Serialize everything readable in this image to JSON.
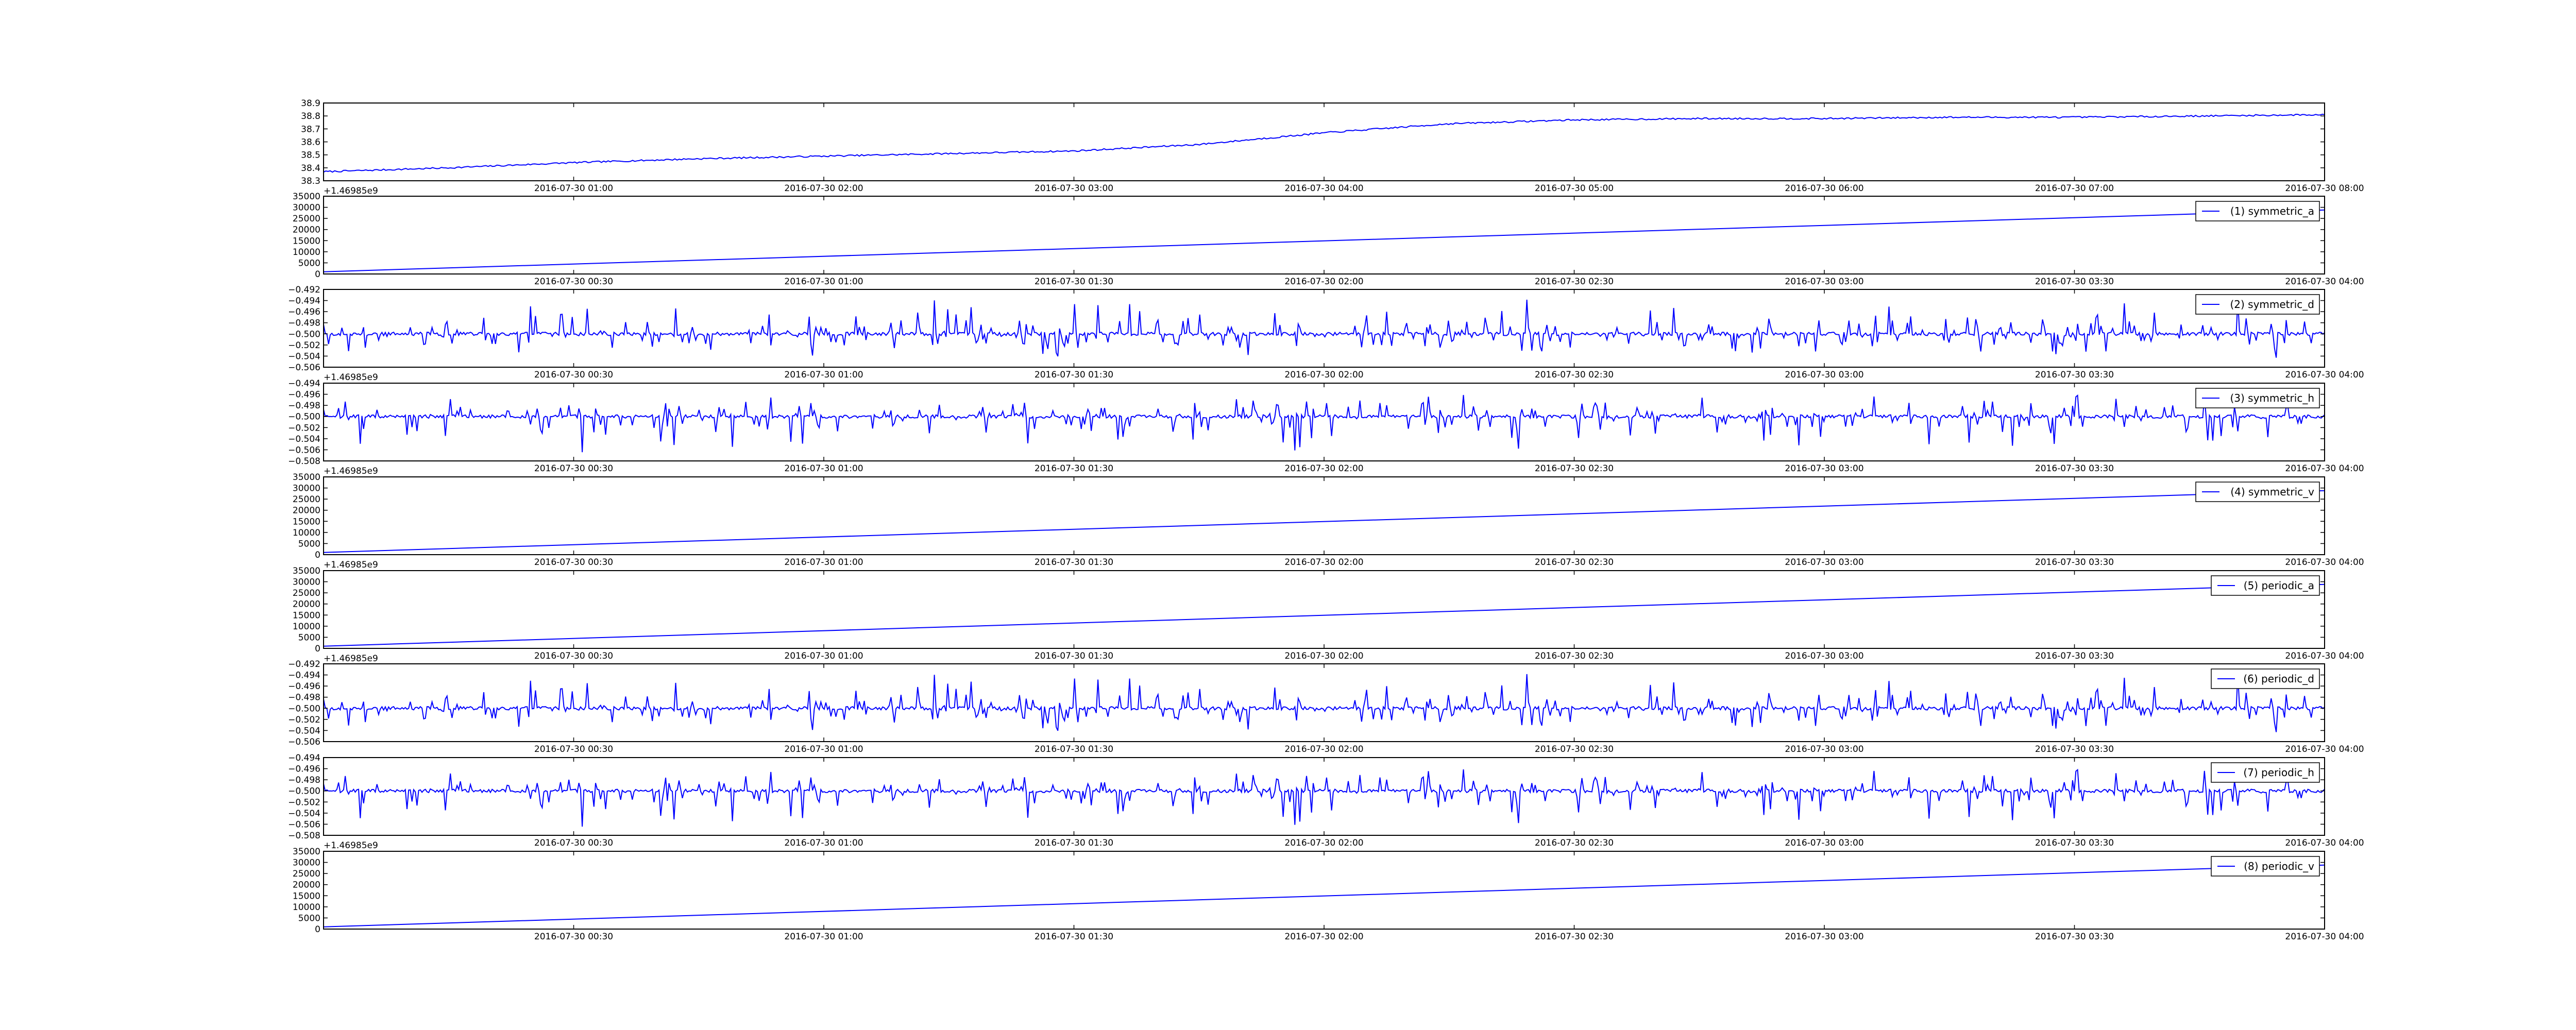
{
  "figure": {
    "line_color": "#0000ff",
    "legend_border": "#000000",
    "background": "#ffffff"
  },
  "chart_data": [
    {
      "type": "line",
      "id": "top",
      "y_ticks": [
        "38.3",
        "38.4",
        "38.5",
        "38.6",
        "38.7",
        "38.8",
        "38.9"
      ],
      "ylim": [
        38.3,
        38.9
      ],
      "x_ticks": [
        "2016-07-30 01:00",
        "2016-07-30 02:00",
        "2016-07-30 03:00",
        "2016-07-30 04:00",
        "2016-07-30 05:00",
        "2016-07-30 06:00",
        "2016-07-30 07:00",
        "2016-07-30 08:00"
      ],
      "x_offset": "+1.46985e9",
      "xlim": [
        "2016-07-30 00:00",
        "2016-07-30 08:00"
      ],
      "series": [
        {
          "x": [
            "00:00",
            "00:30",
            "01:00",
            "01:30",
            "02:00",
            "02:30",
            "03:00",
            "03:30",
            "04:00",
            "04:30",
            "05:00",
            "05:30",
            "06:00",
            "06:30",
            "07:00",
            "07:30",
            "08:00"
          ],
          "values": [
            38.37,
            38.4,
            38.44,
            38.47,
            38.49,
            38.51,
            38.53,
            38.58,
            38.67,
            38.74,
            38.77,
            38.78,
            38.78,
            38.79,
            38.79,
            38.8,
            38.81
          ]
        }
      ]
    },
    {
      "type": "line",
      "id": "symmetric_a",
      "legend": "(1) symmetric_a",
      "y_ticks": [
        "0",
        "5000",
        "10000",
        "15000",
        "20000",
        "25000",
        "30000",
        "35000"
      ],
      "ylim": [
        0,
        35000
      ],
      "x_ticks": [
        "2016-07-30 00:30",
        "2016-07-30 01:00",
        "2016-07-30 01:30",
        "2016-07-30 02:00",
        "2016-07-30 02:30",
        "2016-07-30 03:00",
        "2016-07-30 03:30",
        "2016-07-30 04:00"
      ],
      "xlim": [
        "2016-07-30 00:00",
        "2016-07-30 04:00"
      ],
      "series": [
        {
          "name": "(1) symmetric_a",
          "x": [
            "00:00",
            "04:00"
          ],
          "values": [
            1000,
            28800
          ]
        }
      ]
    },
    {
      "type": "line",
      "id": "symmetric_d",
      "legend": "(2) symmetric_d",
      "y_ticks": [
        "−0.506",
        "−0.504",
        "−0.502",
        "−0.500",
        "−0.498",
        "−0.496",
        "−0.494",
        "−0.492"
      ],
      "ylim": [
        -0.506,
        -0.492
      ],
      "baseline": -0.5,
      "x_ticks": [
        "2016-07-30 00:30",
        "2016-07-30 01:00",
        "2016-07-30 01:30",
        "2016-07-30 02:00",
        "2016-07-30 02:30",
        "2016-07-30 03:00",
        "2016-07-30 03:30",
        "2016-07-30 04:00"
      ],
      "x_offset": "+1.46985e9",
      "xlim": [
        "2016-07-30 00:00",
        "2016-07-30 04:00"
      ],
      "series": [
        {
          "name": "(2) symmetric_d",
          "note": "oscillation around -0.500 with spikes up to -0.493 and down to -0.5045"
        }
      ]
    },
    {
      "type": "line",
      "id": "symmetric_h",
      "legend": "(3) symmetric_h",
      "y_ticks": [
        "−0.508",
        "−0.506",
        "−0.504",
        "−0.502",
        "−0.500",
        "−0.498",
        "−0.496",
        "−0.494"
      ],
      "ylim": [
        -0.508,
        -0.494
      ],
      "baseline": -0.5,
      "x_ticks": [
        "2016-07-30 00:30",
        "2016-07-30 01:00",
        "2016-07-30 01:30",
        "2016-07-30 02:00",
        "2016-07-30 02:30",
        "2016-07-30 03:00",
        "2016-07-30 03:30",
        "2016-07-30 04:00"
      ],
      "x_offset": "+1.46985e9",
      "xlim": [
        "2016-07-30 00:00",
        "2016-07-30 04:00"
      ],
      "series": [
        {
          "name": "(3) symmetric_h",
          "note": "oscillation around -0.500 with spikes up to -0.4955 and down to -0.507"
        }
      ]
    },
    {
      "type": "line",
      "id": "symmetric_v",
      "legend": "(4) symmetric_v",
      "y_ticks": [
        "0",
        "5000",
        "10000",
        "15000",
        "20000",
        "25000",
        "30000",
        "35000"
      ],
      "ylim": [
        0,
        35000
      ],
      "x_ticks": [
        "2016-07-30 00:30",
        "2016-07-30 01:00",
        "2016-07-30 01:30",
        "2016-07-30 02:00",
        "2016-07-30 02:30",
        "2016-07-30 03:00",
        "2016-07-30 03:30",
        "2016-07-30 04:00"
      ],
      "x_offset": "+1.46985e9",
      "xlim": [
        "2016-07-30 00:00",
        "2016-07-30 04:00"
      ],
      "series": [
        {
          "name": "(4) symmetric_v",
          "x": [
            "00:00",
            "04:00"
          ],
          "values": [
            1000,
            28800
          ]
        }
      ]
    },
    {
      "type": "line",
      "id": "periodic_a",
      "legend": "(5) periodic_a",
      "y_ticks": [
        "0",
        "5000",
        "10000",
        "15000",
        "20000",
        "25000",
        "30000",
        "35000"
      ],
      "ylim": [
        0,
        35000
      ],
      "x_ticks": [
        "2016-07-30 00:30",
        "2016-07-30 01:00",
        "2016-07-30 01:30",
        "2016-07-30 02:00",
        "2016-07-30 02:30",
        "2016-07-30 03:00",
        "2016-07-30 03:30",
        "2016-07-30 04:00"
      ],
      "x_offset": "+1.46985e9",
      "xlim": [
        "2016-07-30 00:00",
        "2016-07-30 04:00"
      ],
      "series": [
        {
          "name": "(5) periodic_a",
          "x": [
            "00:00",
            "04:00"
          ],
          "values": [
            1000,
            28800
          ]
        }
      ]
    },
    {
      "type": "line",
      "id": "periodic_d",
      "legend": "(6) periodic_d",
      "y_ticks": [
        "−0.506",
        "−0.504",
        "−0.502",
        "−0.500",
        "−0.498",
        "−0.496",
        "−0.494",
        "−0.492"
      ],
      "ylim": [
        -0.506,
        -0.492
      ],
      "baseline": -0.5,
      "x_ticks": [
        "2016-07-30 00:30",
        "2016-07-30 01:00",
        "2016-07-30 01:30",
        "2016-07-30 02:00",
        "2016-07-30 02:30",
        "2016-07-30 03:00",
        "2016-07-30 03:30",
        "2016-07-30 04:00"
      ],
      "xlim": [
        "2016-07-30 00:00",
        "2016-07-30 04:00"
      ],
      "series": [
        {
          "name": "(6) periodic_d",
          "note": "oscillation around -0.500 with spikes up to -0.493 and down to -0.5045"
        }
      ]
    },
    {
      "type": "line",
      "id": "periodic_h",
      "legend": "(7) periodic_h",
      "y_ticks": [
        "−0.508",
        "−0.506",
        "−0.504",
        "−0.502",
        "−0.500",
        "−0.498",
        "−0.496",
        "−0.494"
      ],
      "ylim": [
        -0.508,
        -0.494
      ],
      "baseline": -0.5,
      "x_ticks": [
        "2016-07-30 00:30",
        "2016-07-30 01:00",
        "2016-07-30 01:30",
        "2016-07-30 02:00",
        "2016-07-30 02:30",
        "2016-07-30 03:00",
        "2016-07-30 03:30",
        "2016-07-30 04:00"
      ],
      "x_offset": "+1.46985e9",
      "xlim": [
        "2016-07-30 00:00",
        "2016-07-30 04:00"
      ],
      "series": [
        {
          "name": "(7) periodic_h",
          "note": "oscillation around -0.500 with spikes up to -0.4955 and down to -0.507"
        }
      ]
    },
    {
      "type": "line",
      "id": "periodic_v",
      "legend": "(8) periodic_v",
      "y_ticks": [
        "0",
        "5000",
        "10000",
        "15000",
        "20000",
        "25000",
        "30000",
        "35000"
      ],
      "ylim": [
        0,
        35000
      ],
      "x_ticks": [
        "2016-07-30 00:30",
        "2016-07-30 01:00",
        "2016-07-30 01:30",
        "2016-07-30 02:00",
        "2016-07-30 02:30",
        "2016-07-30 03:00",
        "2016-07-30 03:30",
        "2016-07-30 04:00"
      ],
      "xlim": [
        "2016-07-30 00:00",
        "2016-07-30 04:00"
      ],
      "series": [
        {
          "name": "(8) periodic_v",
          "x": [
            "00:00",
            "04:00"
          ],
          "values": [
            1000,
            28800
          ]
        }
      ]
    }
  ]
}
